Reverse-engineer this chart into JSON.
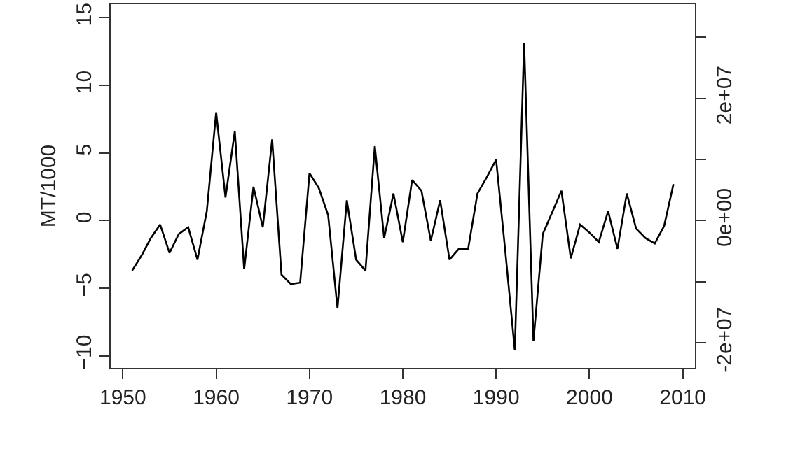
{
  "chart_data": {
    "type": "line",
    "ylabel": "MT/1000",
    "x": [
      1951,
      1952,
      1953,
      1954,
      1955,
      1956,
      1957,
      1958,
      1959,
      1960,
      1961,
      1962,
      1963,
      1964,
      1965,
      1966,
      1967,
      1968,
      1969,
      1970,
      1971,
      1972,
      1973,
      1974,
      1975,
      1976,
      1977,
      1978,
      1979,
      1980,
      1981,
      1982,
      1983,
      1984,
      1985,
      1986,
      1987,
      1988,
      1989,
      1990,
      1991,
      1992,
      1993,
      1994,
      1995,
      1996,
      1997,
      1998,
      1999,
      2000,
      2001,
      2002,
      2003,
      2004,
      2005,
      2006,
      2007,
      2008,
      2009
    ],
    "series": [
      {
        "color": "#000000",
        "values": [
          -3.7,
          -2.6,
          -1.3,
          -0.3,
          -2.4,
          -1.0,
          -0.5,
          -2.9,
          0.7,
          8.0,
          1.7,
          6.6,
          -3.6,
          2.5,
          -0.5,
          6.0,
          -4.0,
          -4.7,
          -4.6,
          3.5,
          2.4,
          0.4,
          -6.5,
          1.5,
          -2.9,
          -3.7,
          5.5,
          -1.3,
          2.0,
          -1.6,
          3.0,
          2.2,
          -1.5,
          1.5,
          -2.9,
          -2.1,
          -2.1,
          2.0,
          3.2,
          4.5,
          -2.4,
          -9.6,
          13.1,
          -8.9,
          -1.0,
          0.6,
          2.2,
          -2.8,
          -0.3,
          -0.9,
          -1.6,
          0.7,
          -2.1,
          2.0,
          -0.6,
          -1.3,
          -1.7,
          -0.4,
          2.7
        ]
      }
    ],
    "xlim": [
      1948.7,
      2011.3
    ],
    "xticks": [
      1950,
      1960,
      1970,
      1980,
      1990,
      2000,
      2010
    ],
    "ylim": [
      -10.9,
      16.0
    ],
    "yticks": [
      -10,
      -5,
      0,
      5,
      10,
      15
    ],
    "y2lim": [
      -24100000,
      35400000
    ],
    "y2ticks": [
      {
        "value": -20000000,
        "label": "-2e+07"
      },
      {
        "value": -10000000,
        "label": null
      },
      {
        "value": 0,
        "label": "0e+00"
      },
      {
        "value": 10000000,
        "label": null
      },
      {
        "value": 20000000,
        "label": "2e+07"
      },
      {
        "value": 30000000,
        "label": null
      }
    ],
    "marker": "none",
    "line_style": "solid"
  }
}
